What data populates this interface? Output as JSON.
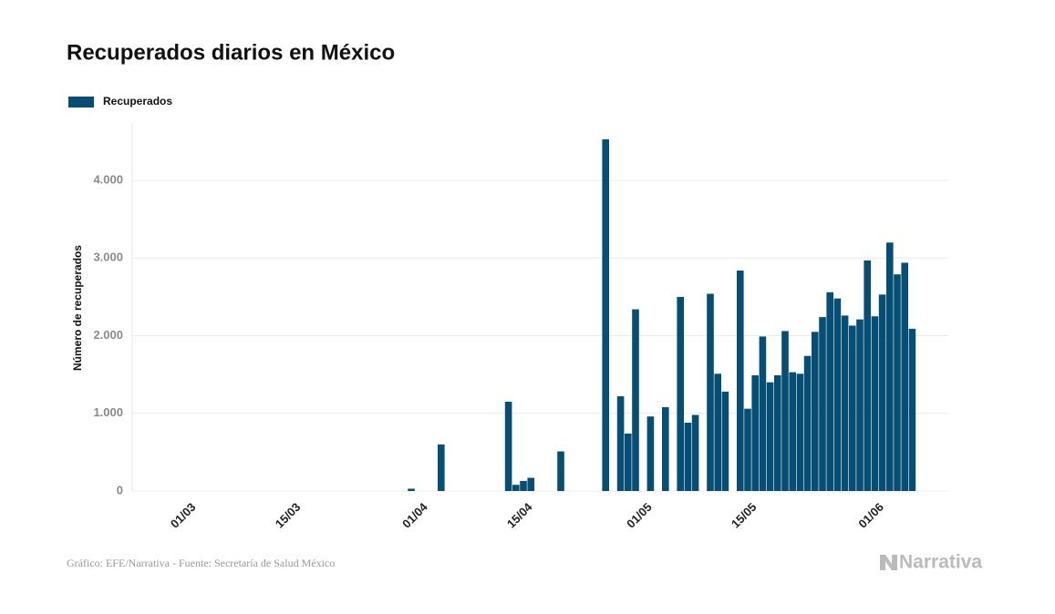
{
  "chart_data": {
    "type": "bar",
    "title": "Recuperados diarios en México",
    "y_label": "Número de recuperados",
    "source": "Gráfico: EFE/Narrativa - Fuente: Secretaría de Salud México",
    "logo": "Narrativa",
    "categories": [
      null,
      null,
      null,
      "01/03",
      null,
      null,
      null,
      null,
      null,
      null,
      null,
      null,
      null,
      null,
      null,
      null,
      null,
      "15/03",
      null,
      null,
      null,
      null,
      null,
      null,
      null,
      null,
      null,
      null,
      null,
      null,
      null,
      null,
      null,
      null,
      "01/04",
      null,
      null,
      null,
      null,
      null,
      null,
      null,
      null,
      null,
      null,
      null,
      null,
      null,
      "15/04",
      null,
      null,
      null,
      null,
      null,
      null,
      null,
      null,
      null,
      null,
      null,
      null,
      null,
      null,
      null,
      "01/05",
      null,
      null,
      null,
      null,
      null,
      null,
      null,
      null,
      null,
      null,
      null,
      null,
      null,
      "15/05",
      null,
      null,
      null,
      null,
      null,
      null,
      null,
      null,
      null,
      null,
      null,
      null,
      null,
      null,
      null,
      null,
      "01/06",
      null,
      null,
      null,
      null,
      null
    ],
    "series": [
      {
        "name": "Recuperados",
        "color": "#064e74",
        "values": [
          0,
          0,
          0,
          0,
          0,
          0,
          0,
          0,
          0,
          0,
          0,
          0,
          0,
          0,
          0,
          0,
          0,
          0,
          0,
          0,
          0,
          0,
          0,
          0,
          0,
          0,
          0,
          0,
          0,
          0,
          0,
          0,
          0,
          30,
          0,
          0,
          0,
          600,
          0,
          0,
          0,
          0,
          0,
          0,
          0,
          0,
          1150,
          80,
          130,
          170,
          0,
          0,
          0,
          510,
          0,
          0,
          0,
          0,
          0,
          4530,
          0,
          1220,
          740,
          2340,
          0,
          960,
          0,
          1080,
          0,
          2500,
          880,
          980,
          0,
          2540,
          1510,
          1280,
          0,
          2840,
          1060,
          1490,
          1990,
          1400,
          1490,
          2060,
          1530,
          1510,
          1740,
          2050,
          2240,
          2560,
          2480,
          2260,
          2130,
          2210,
          2970,
          2250,
          2530,
          3200,
          2790,
          2940,
          2090
        ]
      }
    ],
    "ylim": [
      0,
      4740
    ],
    "yticks": [
      0,
      {
        "value": 1000,
        "label": "1.000"
      },
      {
        "value": 2000,
        "label": "2.000"
      },
      {
        "value": 3000,
        "label": "3.000"
      },
      {
        "value": 4000,
        "label": "4.000"
      }
    ],
    "grid": true,
    "legend": "top-left"
  }
}
